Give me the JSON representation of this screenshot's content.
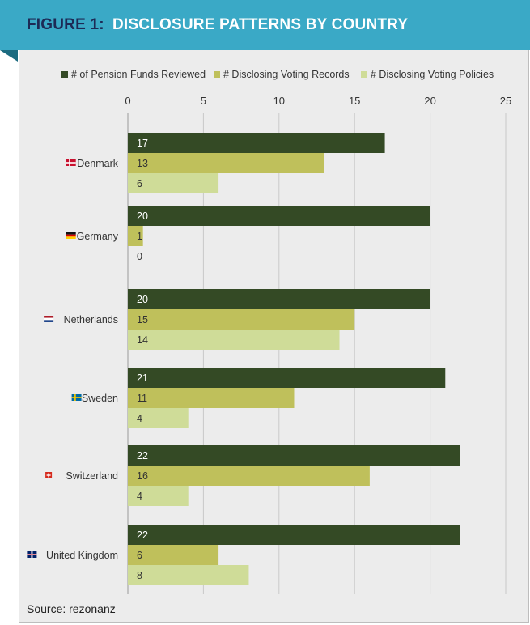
{
  "header": {
    "figure_label": "FIGURE 1:",
    "title": "DISCLOSURE PATTERNS BY COUNTRY"
  },
  "source": "Source: rezonanz",
  "colors": {
    "banner": "#3aa9c6",
    "banner_fold": "#1c6b80",
    "figure_label": "#1d2a55",
    "panel": "#ececec",
    "series": [
      "#344a25",
      "#bfc05b",
      "#cfdc98"
    ]
  },
  "chart_data": {
    "type": "bar",
    "orientation": "horizontal",
    "categories": [
      "Denmark",
      "Germany",
      "Netherlands",
      "Sweden",
      "Switzerland",
      "United Kingdom"
    ],
    "flag_icons": [
      "denmark-flag-icon",
      "germany-flag-icon",
      "netherlands-flag-icon",
      "sweden-flag-icon",
      "switzerland-flag-icon",
      "united-kingdom-flag-icon"
    ],
    "series": [
      {
        "name": "# of Pension Funds Reviewed",
        "values": [
          17,
          20,
          20,
          21,
          22,
          22
        ]
      },
      {
        "name": "# Disclosing Voting Records",
        "values": [
          13,
          1,
          15,
          11,
          16,
          6
        ]
      },
      {
        "name": "# Disclosing Voting Policies",
        "values": [
          6,
          0,
          14,
          4,
          4,
          8
        ]
      }
    ],
    "xlim": [
      0,
      25
    ],
    "x_ticks": [
      0,
      5,
      10,
      15,
      20,
      25
    ],
    "axis_position": "top",
    "legend_position": "top",
    "grid": true,
    "data_labels": true
  }
}
